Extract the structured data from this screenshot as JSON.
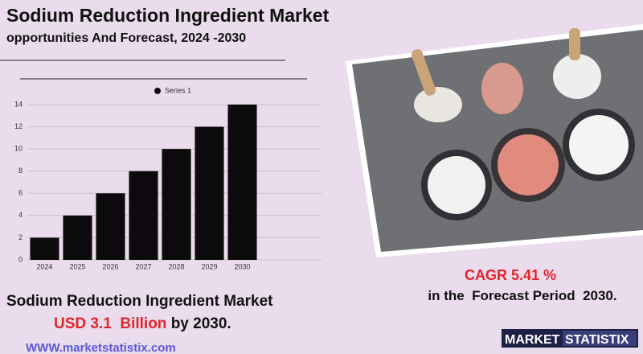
{
  "header": {
    "title": "Sodium Reduction Ingredient Market",
    "subtitle": "opportunities And Forecast, 2024 -2030"
  },
  "chart_data": {
    "type": "bar",
    "categories": [
      "2024",
      "2025",
      "2026",
      "2027",
      "2028",
      "2029",
      "2030"
    ],
    "series": [
      {
        "name": "Series 1",
        "color": "#0c0a0c",
        "values": [
          2,
          4,
          6,
          8,
          10,
          12,
          14
        ]
      }
    ],
    "ylim": [
      0,
      14
    ],
    "yticks": [
      0,
      2,
      4,
      6,
      8,
      10,
      12,
      14
    ],
    "grid": true,
    "legend": "top"
  },
  "cagr": {
    "label": "CAGR 5.41 %",
    "period": "in the  Forecast Period  2030."
  },
  "summary": {
    "line1": "Sodium Reduction Ingredient Market",
    "value": "USD 3.1  Billion",
    "suffix": " by 2030."
  },
  "website": "WWW.marketstatistix.com",
  "logo": {
    "part1": "MARKET",
    "part2": "STATISTIX"
  }
}
